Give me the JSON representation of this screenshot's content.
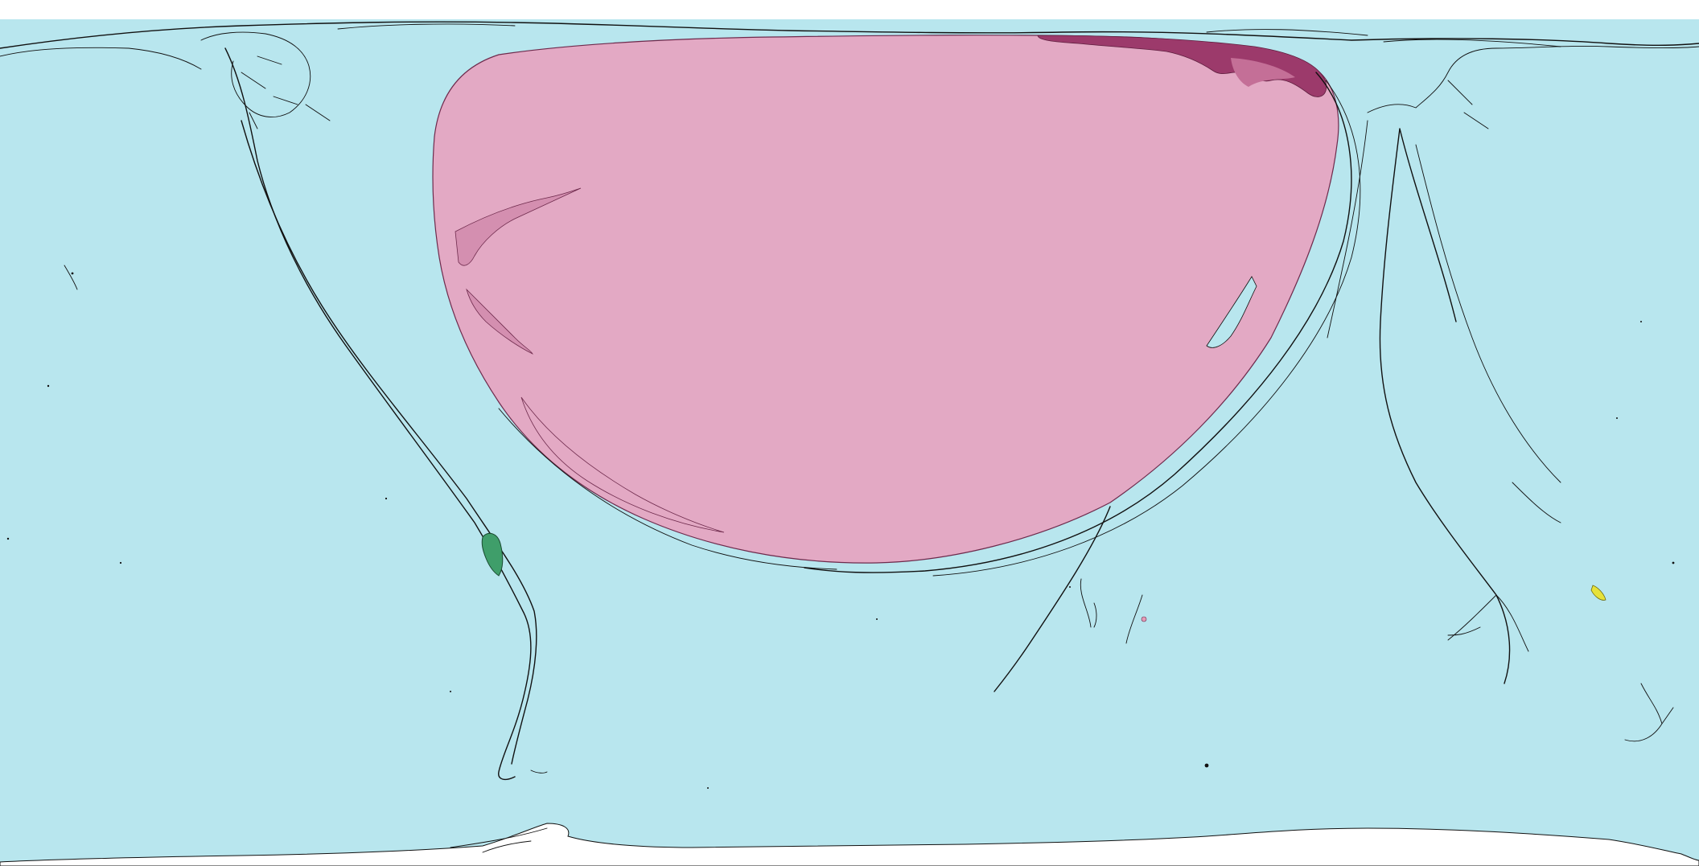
{
  "map": {
    "type": "distorted world map (cartogram)",
    "colors": {
      "ocean": "#b8e6ee",
      "background": "#ffffff",
      "dominant_region": "#e3a9c4",
      "dominant_region_shadow": "#d48fb0",
      "dominant_region_dark": "#9c3a6b",
      "ice": "#ffffff",
      "coastline": "#111111",
      "green_region": "#3f9e6a",
      "yellow_region": "#e6e23a",
      "small_pink_dot": "#e39cb6"
    },
    "regions": [
      {
        "name": "dominant-pink-region",
        "color": "#e3a9c4"
      },
      {
        "name": "dark-magenta-fringe",
        "color": "#9c3a6b"
      },
      {
        "name": "green-region",
        "color": "#3f9e6a"
      },
      {
        "name": "yellow-region",
        "color": "#e6e23a"
      },
      {
        "name": "antarctica-ice",
        "color": "#ffffff"
      }
    ]
  }
}
